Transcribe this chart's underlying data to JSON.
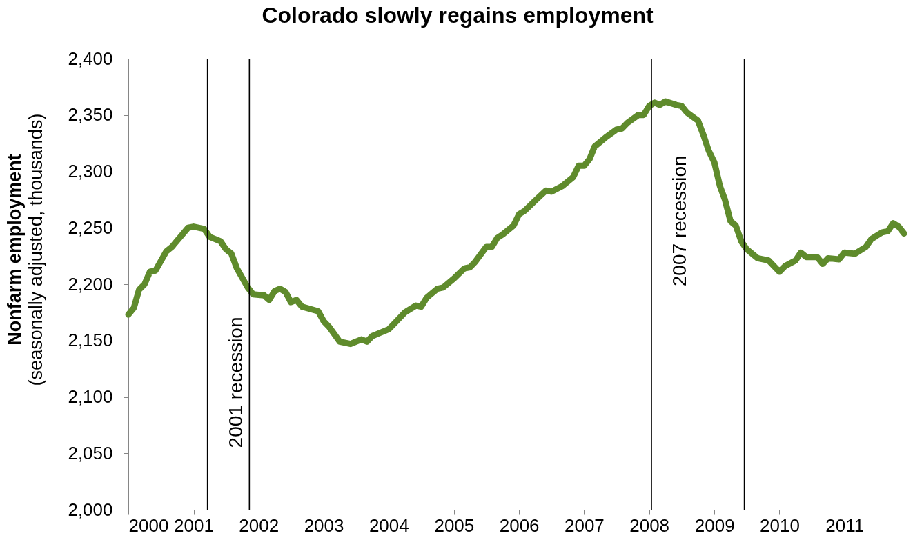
{
  "chart_data": {
    "type": "line",
    "title": "Colorado slowly regains employment",
    "ylabel": "Nonfarm employment\n(seasonally adjusted, thousands)",
    "x": [
      "2000-01",
      "2000-02",
      "2000-03",
      "2000-04",
      "2000-05",
      "2000-06",
      "2000-08",
      "2000-09",
      "2000-12",
      "2001-01",
      "2001-03",
      "2001-04",
      "2001-06",
      "2001-07",
      "2001-08",
      "2001-09",
      "2001-11",
      "2001-12",
      "2002-02",
      "2002-03",
      "2002-04",
      "2002-05",
      "2002-06",
      "2002-07",
      "2002-08",
      "2002-09",
      "2002-12",
      "2003-01",
      "2003-02",
      "2003-04",
      "2003-06",
      "2003-08",
      "2003-09",
      "2003-10",
      "2003-11",
      "2004-01",
      "2004-02",
      "2004-04",
      "2004-06",
      "2004-07",
      "2004-08",
      "2004-10",
      "2004-11",
      "2005-01",
      "2005-03",
      "2005-04",
      "2005-05",
      "2005-07",
      "2005-08",
      "2005-09",
      "2005-10",
      "2005-12",
      "2006-01",
      "2006-02",
      "2006-04",
      "2006-06",
      "2006-07",
      "2006-09",
      "2006-11",
      "2006-12",
      "2007-01",
      "2007-02",
      "2007-03",
      "2007-05",
      "2007-07",
      "2007-08",
      "2007-09",
      "2007-11",
      "2007-12",
      "2008-01",
      "2008-02",
      "2008-03",
      "2008-04",
      "2008-06",
      "2008-07",
      "2008-08",
      "2008-10",
      "2008-11",
      "2008-12",
      "2009-01",
      "2009-02",
      "2009-03",
      "2009-04",
      "2009-05",
      "2009-06",
      "2009-07",
      "2009-09",
      "2009-11",
      "2010-01",
      "2010-02",
      "2010-04",
      "2010-05",
      "2010-06",
      "2010-08",
      "2010-09",
      "2010-10",
      "2010-12",
      "2011-01",
      "2011-03",
      "2011-05",
      "2011-06",
      "2011-08",
      "2011-09",
      "2011-10",
      "2011-11",
      "2011-12"
    ],
    "series": [
      {
        "color": "#5f8b2c",
        "values": [
          2173,
          2179,
          2195,
          2200,
          2211,
          2212,
          2229,
          2233,
          2250,
          2251,
          2249,
          2242,
          2238,
          2231,
          2227,
          2214,
          2197,
          2191,
          2190,
          2186,
          2194,
          2196,
          2193,
          2184,
          2186,
          2180,
          2176,
          2167,
          2162,
          2149,
          2147,
          2151,
          2149,
          2154,
          2156,
          2160,
          2165,
          2175,
          2181,
          2180,
          2188,
          2196,
          2197,
          2205,
          2214,
          2215,
          2220,
          2233,
          2233,
          2241,
          2244,
          2252,
          2262,
          2265,
          2274,
          2283,
          2282,
          2287,
          2295,
          2305,
          2305,
          2311,
          2322,
          2330,
          2337,
          2338,
          2343,
          2350,
          2350,
          2358,
          2361,
          2359,
          2362,
          2359,
          2358,
          2352,
          2345,
          2332,
          2318,
          2308,
          2287,
          2275,
          2256,
          2252,
          2238,
          2231,
          2223,
          2221,
          2211,
          2216,
          2221,
          2228,
          2224,
          2224,
          2218,
          2223,
          2222,
          2228,
          2227,
          2233,
          2240,
          2246,
          2247,
          2254,
          2251,
          2245
        ]
      }
    ],
    "xlim": [
      "2000",
      "2012"
    ],
    "xticks": [
      "2000",
      "2001",
      "2002",
      "2003",
      "2004",
      "2005",
      "2006",
      "2007",
      "2008",
      "2009",
      "2010",
      "2011"
    ],
    "ylim": [
      2000,
      2400
    ],
    "yticks": [
      {
        "value": 2000,
        "label": "2,000"
      },
      {
        "value": 2050,
        "label": "2,050"
      },
      {
        "value": 2100,
        "label": "2,100"
      },
      {
        "value": 2150,
        "label": "2,150"
      },
      {
        "value": 2200,
        "label": "2,200"
      },
      {
        "value": 2250,
        "label": "2,250"
      },
      {
        "value": 2300,
        "label": "2,300"
      },
      {
        "value": 2350,
        "label": "2,350"
      },
      {
        "value": 2400,
        "label": "2,400"
      }
    ],
    "ref_lines": [
      {
        "axis": "x",
        "value": "2001-03-20",
        "color": "#000000",
        "label": "2001 recession"
      },
      {
        "axis": "x",
        "value": "2001-11-10",
        "color": "#000000"
      },
      {
        "axis": "x",
        "value": "2008-01-14",
        "color": "#000000",
        "label": "2007 recession"
      },
      {
        "axis": "x",
        "value": "2009-06-18",
        "color": "#000000"
      }
    ]
  }
}
